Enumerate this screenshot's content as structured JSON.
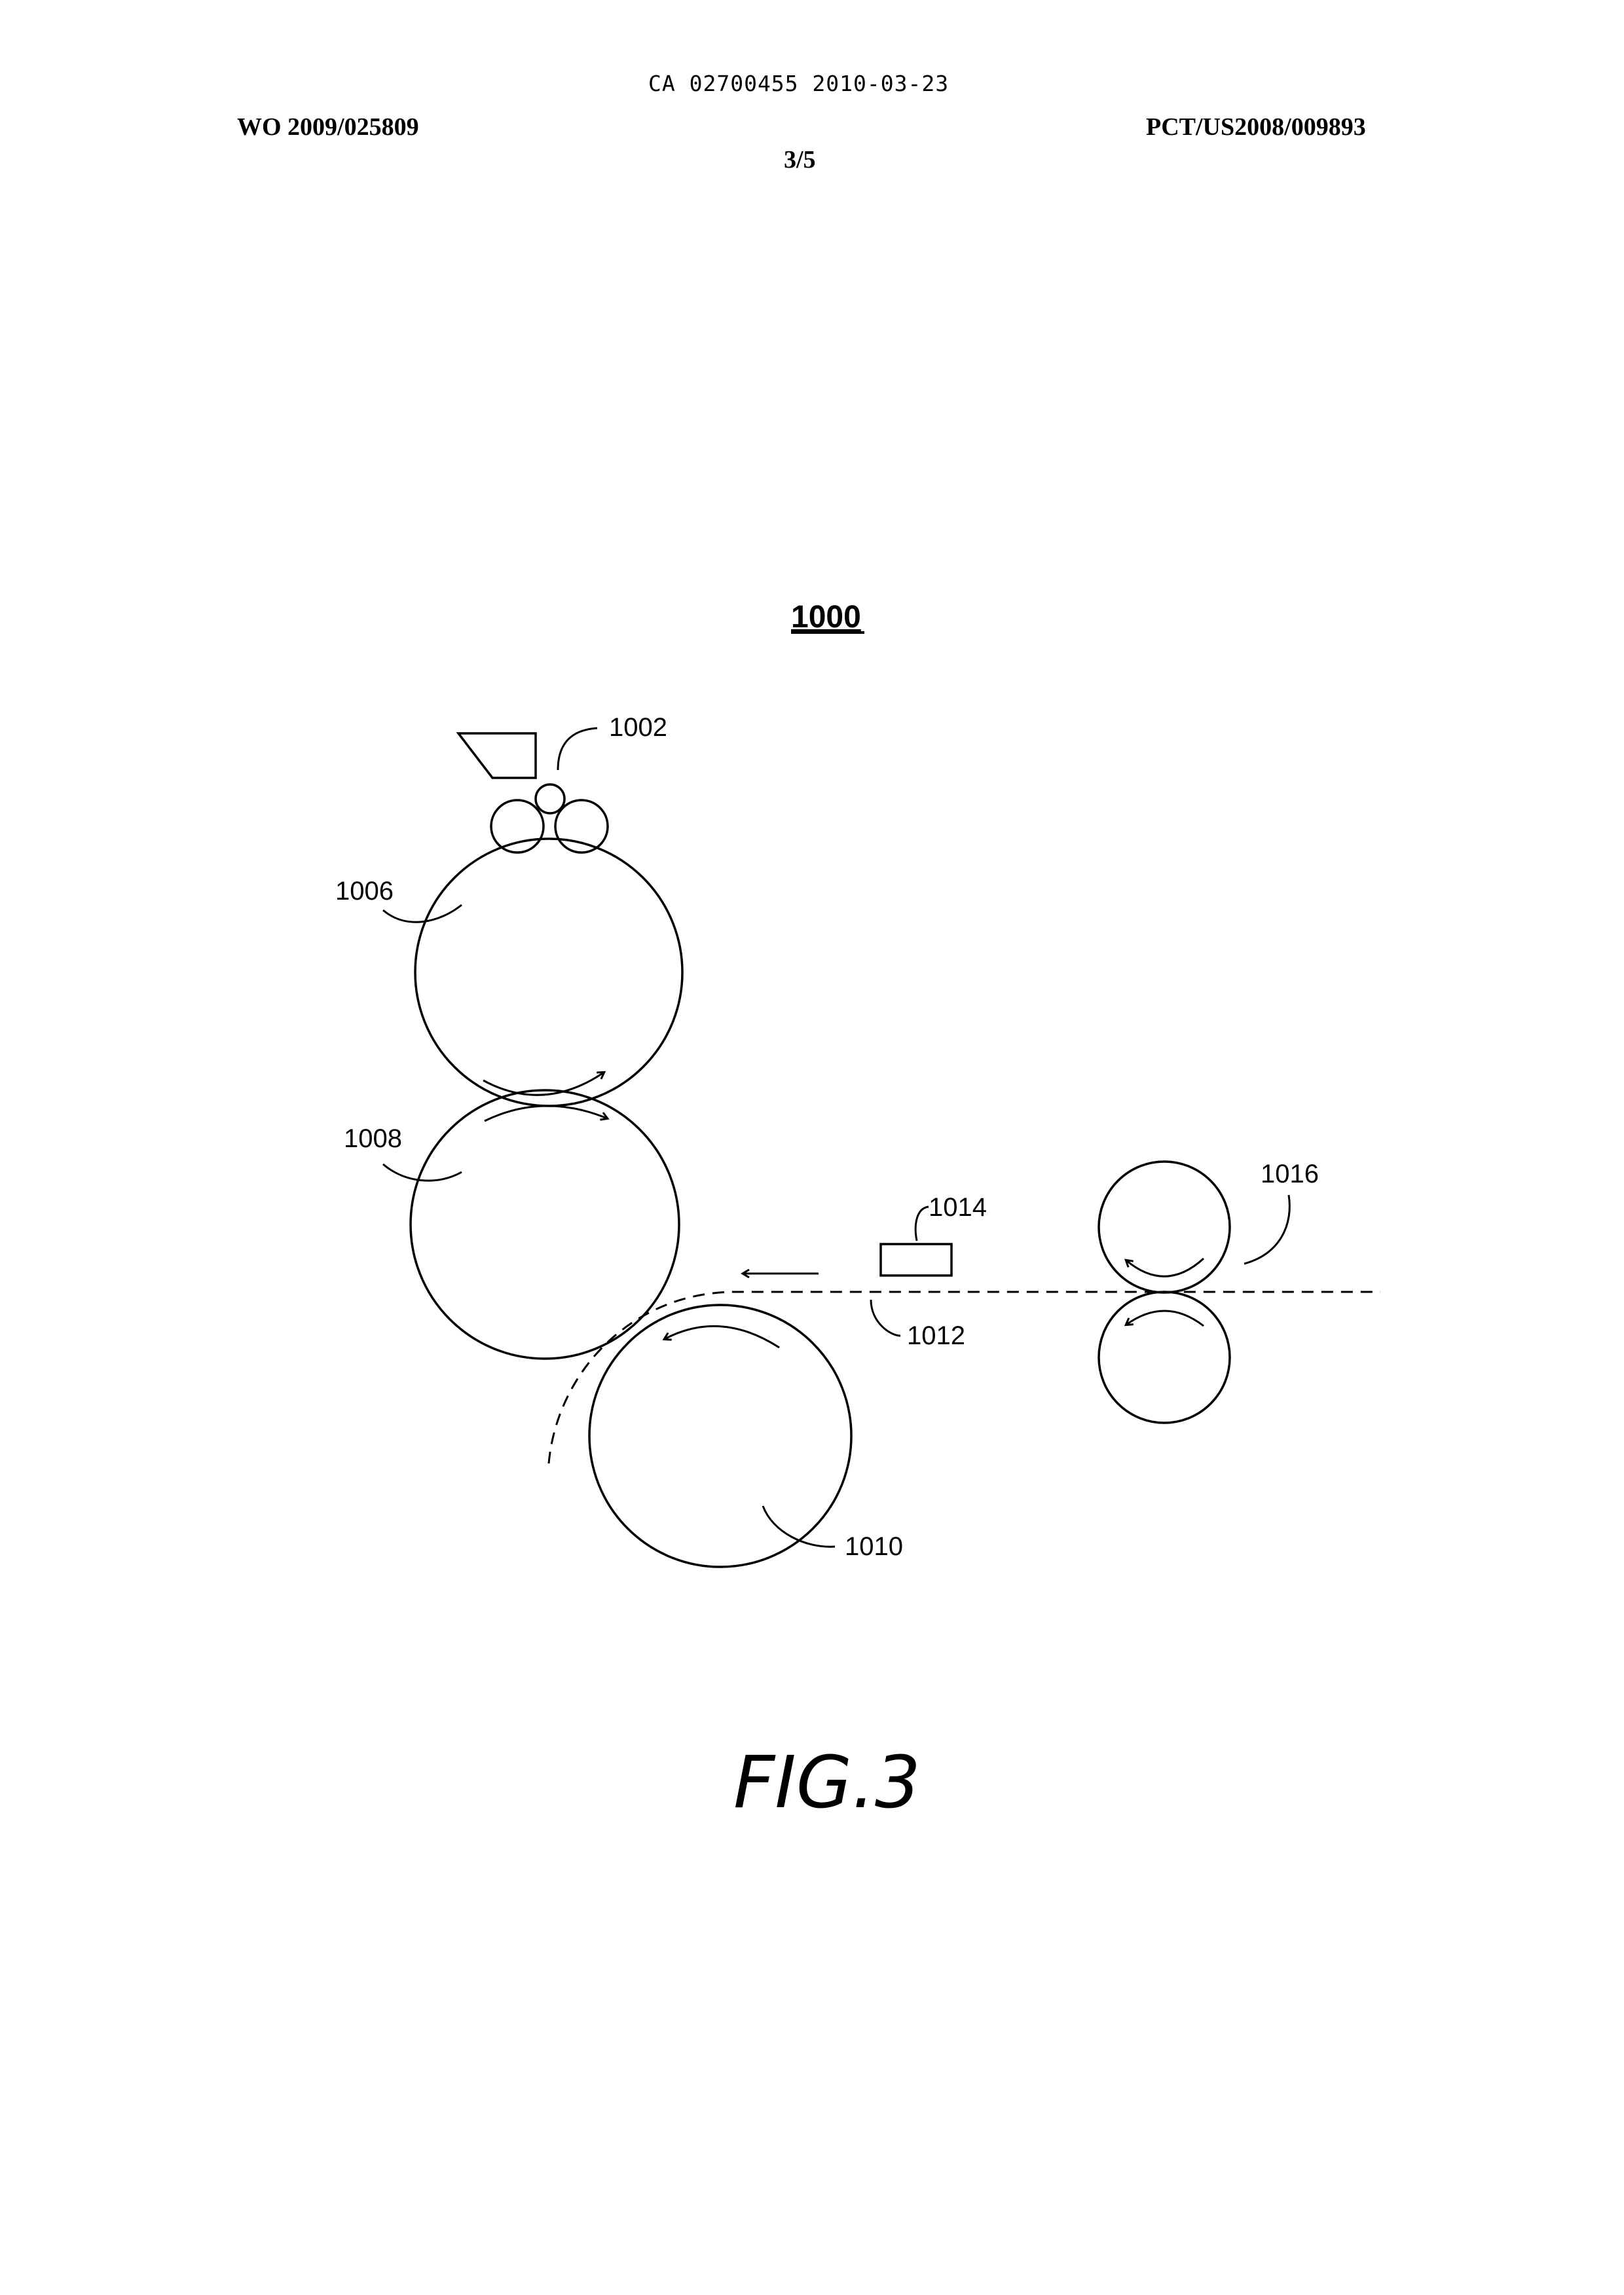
{
  "header": {
    "doc_ref": "CA 02700455 2010-03-23",
    "pub_number": "WO 2009/025809",
    "app_number": "PCT/US2008/009893",
    "sheet": "3/5"
  },
  "figure": {
    "system_ref": "1000",
    "caption": "FIG.3",
    "labels": {
      "inking_unit": "1002",
      "upper_drum": "1006",
      "middle_drum": "1008",
      "lower_drum": "1010",
      "media_path": "1012",
      "sensor": "1014",
      "feed_rollers": "1016"
    }
  }
}
